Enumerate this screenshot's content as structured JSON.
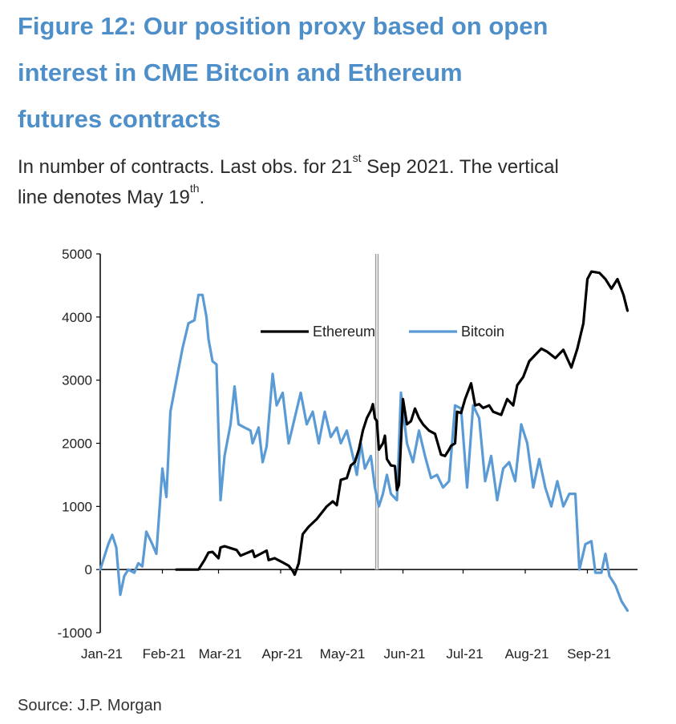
{
  "header": {
    "title_line1": "Figure 12: Our position proxy based on open",
    "title_line2": "interest in CME Bitcoin and Ethereum",
    "title_line3": "futures contracts",
    "subtitle_part1": "In number of contracts. Last obs. for 21",
    "subtitle_sup1": "st",
    "subtitle_part2": " Sep 2021. The vertical",
    "subtitle_part3": "line denotes May 19",
    "subtitle_sup2": "th",
    "subtitle_part4": "."
  },
  "footer": {
    "source": "Source: J.P. Morgan"
  },
  "chart_data": {
    "type": "line",
    "x_tick_labels": [
      "Jan-21",
      "Feb-21",
      "Mar-21",
      "Apr-21",
      "May-21",
      "Jun-21",
      "Jul-21",
      "Aug-21",
      "Sep-21"
    ],
    "y_tick_labels": [
      "5000",
      "4000",
      "3000",
      "2000",
      "1000",
      "0",
      "-1000"
    ],
    "ylim": [
      -1000,
      5000
    ],
    "x_range": [
      "2021-01-01",
      "2021-09-26"
    ],
    "vertical_line_date": "2021-05-19",
    "legend_position": "top-center",
    "grid": false,
    "colors": {
      "Ethereum": "#000000",
      "Bitcoin": "#5b9bd5",
      "vertical_line": "#9a9a9a"
    },
    "series": [
      {
        "name": "Ethereum",
        "points": [
          [
            "2021-02-08",
            0
          ],
          [
            "2021-02-15",
            0
          ],
          [
            "2021-02-19",
            0
          ],
          [
            "2021-02-22",
            150
          ],
          [
            "2021-02-24",
            270
          ],
          [
            "2021-02-26",
            280
          ],
          [
            "2021-03-01",
            180
          ],
          [
            "2021-03-02",
            350
          ],
          [
            "2021-03-04",
            370
          ],
          [
            "2021-03-08",
            330
          ],
          [
            "2021-03-10",
            310
          ],
          [
            "2021-03-12",
            220
          ],
          [
            "2021-03-15",
            260
          ],
          [
            "2021-03-18",
            300
          ],
          [
            "2021-03-19",
            200
          ],
          [
            "2021-03-22",
            250
          ],
          [
            "2021-03-25",
            300
          ],
          [
            "2021-03-26",
            150
          ],
          [
            "2021-03-29",
            180
          ],
          [
            "2021-04-01",
            130
          ],
          [
            "2021-04-05",
            60
          ],
          [
            "2021-04-07",
            -20
          ],
          [
            "2021-04-08",
            -80
          ],
          [
            "2021-04-10",
            100
          ],
          [
            "2021-04-12",
            560
          ],
          [
            "2021-04-15",
            680
          ],
          [
            "2021-04-19",
            800
          ],
          [
            "2021-04-21",
            880
          ],
          [
            "2021-04-24",
            1000
          ],
          [
            "2021-04-27",
            1080
          ],
          [
            "2021-04-29",
            1020
          ],
          [
            "2021-05-01",
            1420
          ],
          [
            "2021-05-04",
            1450
          ],
          [
            "2021-05-06",
            1650
          ],
          [
            "2021-05-08",
            1700
          ],
          [
            "2021-05-10",
            1900
          ],
          [
            "2021-05-12",
            2200
          ],
          [
            "2021-05-14",
            2400
          ],
          [
            "2021-05-16",
            2520
          ],
          [
            "2021-05-17",
            2620
          ],
          [
            "2021-05-18",
            2400
          ],
          [
            "2021-05-19",
            2350
          ],
          [
            "2021-05-20",
            1900
          ],
          [
            "2021-05-22",
            2000
          ],
          [
            "2021-05-23",
            2120
          ],
          [
            "2021-05-24",
            1750
          ],
          [
            "2021-05-26",
            1650
          ],
          [
            "2021-05-28",
            1640
          ],
          [
            "2021-05-29",
            1260
          ],
          [
            "2021-05-30",
            1340
          ],
          [
            "2021-06-01",
            2700
          ],
          [
            "2021-06-03",
            2300
          ],
          [
            "2021-06-05",
            2350
          ],
          [
            "2021-06-07",
            2550
          ],
          [
            "2021-06-09",
            2400
          ],
          [
            "2021-06-11",
            2300
          ],
          [
            "2021-06-14",
            2200
          ],
          [
            "2021-06-17",
            2150
          ],
          [
            "2021-06-20",
            1820
          ],
          [
            "2021-06-22",
            1800
          ],
          [
            "2021-06-24",
            1900
          ],
          [
            "2021-06-25",
            1960
          ],
          [
            "2021-06-27",
            2000
          ],
          [
            "2021-06-28",
            2500
          ],
          [
            "2021-06-30",
            2480
          ],
          [
            "2021-07-02",
            2700
          ],
          [
            "2021-07-05",
            2950
          ],
          [
            "2021-07-07",
            2600
          ],
          [
            "2021-07-09",
            2620
          ],
          [
            "2021-07-11",
            2560
          ],
          [
            "2021-07-14",
            2600
          ],
          [
            "2021-07-16",
            2500
          ],
          [
            "2021-07-20",
            2450
          ],
          [
            "2021-07-23",
            2700
          ],
          [
            "2021-07-26",
            2600
          ],
          [
            "2021-07-28",
            2920
          ],
          [
            "2021-07-31",
            3050
          ],
          [
            "2021-08-03",
            3300
          ],
          [
            "2021-08-06",
            3400
          ],
          [
            "2021-08-09",
            3500
          ],
          [
            "2021-08-12",
            3450
          ],
          [
            "2021-08-16",
            3350
          ],
          [
            "2021-08-20",
            3480
          ],
          [
            "2021-08-24",
            3200
          ],
          [
            "2021-08-27",
            3500
          ],
          [
            "2021-08-30",
            3900
          ],
          [
            "2021-09-01",
            4600
          ],
          [
            "2021-09-03",
            4720
          ],
          [
            "2021-09-07",
            4700
          ],
          [
            "2021-09-10",
            4600
          ],
          [
            "2021-09-13",
            4450
          ],
          [
            "2021-09-16",
            4600
          ],
          [
            "2021-09-19",
            4350
          ],
          [
            "2021-09-21",
            4100
          ]
        ]
      },
      {
        "name": "Bitcoin",
        "points": [
          [
            "2021-01-01",
            0
          ],
          [
            "2021-01-03",
            200
          ],
          [
            "2021-01-05",
            400
          ],
          [
            "2021-01-07",
            550
          ],
          [
            "2021-01-09",
            350
          ],
          [
            "2021-01-11",
            -400
          ],
          [
            "2021-01-13",
            -100
          ],
          [
            "2021-01-15",
            0
          ],
          [
            "2021-01-18",
            -50
          ],
          [
            "2021-01-20",
            100
          ],
          [
            "2021-01-22",
            50
          ],
          [
            "2021-01-24",
            600
          ],
          [
            "2021-01-27",
            400
          ],
          [
            "2021-01-29",
            250
          ],
          [
            "2021-02-01",
            1600
          ],
          [
            "2021-02-03",
            1150
          ],
          [
            "2021-02-05",
            2500
          ],
          [
            "2021-02-08",
            3000
          ],
          [
            "2021-02-11",
            3500
          ],
          [
            "2021-02-14",
            3900
          ],
          [
            "2021-02-17",
            3950
          ],
          [
            "2021-02-19",
            4350
          ],
          [
            "2021-02-21",
            4350
          ],
          [
            "2021-02-23",
            4000
          ],
          [
            "2021-02-24",
            3650
          ],
          [
            "2021-02-26",
            3300
          ],
          [
            "2021-02-28",
            3250
          ],
          [
            "2021-03-02",
            1100
          ],
          [
            "2021-03-04",
            1800
          ],
          [
            "2021-03-07",
            2300
          ],
          [
            "2021-03-09",
            2900
          ],
          [
            "2021-03-11",
            2300
          ],
          [
            "2021-03-14",
            2250
          ],
          [
            "2021-03-17",
            2200
          ],
          [
            "2021-03-18",
            2000
          ],
          [
            "2021-03-21",
            2250
          ],
          [
            "2021-03-23",
            1700
          ],
          [
            "2021-03-25",
            1950
          ],
          [
            "2021-03-28",
            3100
          ],
          [
            "2021-03-30",
            2600
          ],
          [
            "2021-04-02",
            2800
          ],
          [
            "2021-04-05",
            2000
          ],
          [
            "2021-04-08",
            2400
          ],
          [
            "2021-04-11",
            2800
          ],
          [
            "2021-04-14",
            2300
          ],
          [
            "2021-04-17",
            2500
          ],
          [
            "2021-04-20",
            2000
          ],
          [
            "2021-04-23",
            2500
          ],
          [
            "2021-04-26",
            2100
          ],
          [
            "2021-04-29",
            2250
          ],
          [
            "2021-05-01",
            2000
          ],
          [
            "2021-05-04",
            2200
          ],
          [
            "2021-05-07",
            1800
          ],
          [
            "2021-05-09",
            1500
          ],
          [
            "2021-05-11",
            2000
          ],
          [
            "2021-05-13",
            1600
          ],
          [
            "2021-05-16",
            1800
          ],
          [
            "2021-05-18",
            1300
          ],
          [
            "2021-05-20",
            1000
          ],
          [
            "2021-05-22",
            1200
          ],
          [
            "2021-05-24",
            1500
          ],
          [
            "2021-05-26",
            1200
          ],
          [
            "2021-05-29",
            1100
          ],
          [
            "2021-05-31",
            2800
          ],
          [
            "2021-06-03",
            2000
          ],
          [
            "2021-06-06",
            1700
          ],
          [
            "2021-06-09",
            2200
          ],
          [
            "2021-06-12",
            1800
          ],
          [
            "2021-06-15",
            1450
          ],
          [
            "2021-06-18",
            1500
          ],
          [
            "2021-06-21",
            1300
          ],
          [
            "2021-06-24",
            1400
          ],
          [
            "2021-06-27",
            2600
          ],
          [
            "2021-06-30",
            2550
          ],
          [
            "2021-07-03",
            1300
          ],
          [
            "2021-07-06",
            2600
          ],
          [
            "2021-07-09",
            2400
          ],
          [
            "2021-07-12",
            1400
          ],
          [
            "2021-07-15",
            1800
          ],
          [
            "2021-07-18",
            1100
          ],
          [
            "2021-07-21",
            1600
          ],
          [
            "2021-07-24",
            1700
          ],
          [
            "2021-07-27",
            1400
          ],
          [
            "2021-07-30",
            2300
          ],
          [
            "2021-08-02",
            2000
          ],
          [
            "2021-08-05",
            1300
          ],
          [
            "2021-08-08",
            1750
          ],
          [
            "2021-08-11",
            1300
          ],
          [
            "2021-08-14",
            1000
          ],
          [
            "2021-08-17",
            1400
          ],
          [
            "2021-08-20",
            1000
          ],
          [
            "2021-08-23",
            1200
          ],
          [
            "2021-08-26",
            1200
          ],
          [
            "2021-08-28",
            0
          ],
          [
            "2021-08-31",
            400
          ],
          [
            "2021-09-03",
            450
          ],
          [
            "2021-09-05",
            -50
          ],
          [
            "2021-09-08",
            -50
          ],
          [
            "2021-09-10",
            250
          ],
          [
            "2021-09-12",
            -100
          ],
          [
            "2021-09-15",
            -250
          ],
          [
            "2021-09-18",
            -500
          ],
          [
            "2021-09-21",
            -650
          ]
        ]
      }
    ]
  }
}
